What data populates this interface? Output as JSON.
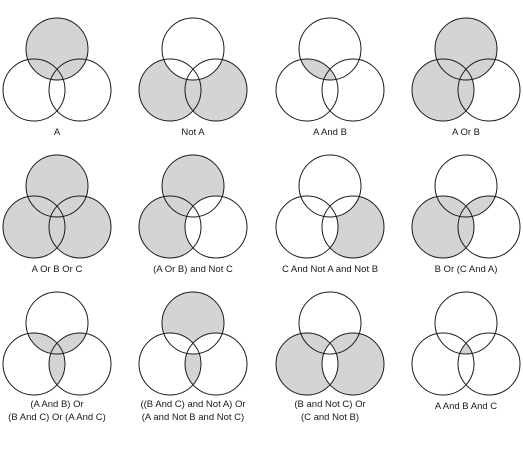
{
  "colors": {
    "fill": "#d4d4d4",
    "stroke": "#1a1a1a",
    "background": "#ffffff"
  },
  "diagrams": [
    {
      "label_lines": [
        "A"
      ],
      "regions": [
        "A",
        "AB",
        "AC",
        "ABC"
      ]
    },
    {
      "label_lines": [
        "Not A"
      ],
      "regions": [
        "B",
        "C",
        "BC"
      ]
    },
    {
      "label_lines": [
        "A And B"
      ],
      "regions": [
        "AB",
        "ABC"
      ]
    },
    {
      "label_lines": [
        "A Or B"
      ],
      "regions": [
        "A",
        "B",
        "AB",
        "AC",
        "BC",
        "ABC"
      ]
    },
    {
      "label_lines": [
        "A Or B Or C"
      ],
      "regions": [
        "A",
        "B",
        "C",
        "AB",
        "AC",
        "BC",
        "ABC"
      ]
    },
    {
      "label_lines": [
        "(A Or B) and Not C"
      ],
      "regions": [
        "A",
        "B",
        "AB"
      ]
    },
    {
      "label_lines": [
        "C And Not A and Not B"
      ],
      "regions": [
        "C"
      ]
    },
    {
      "label_lines": [
        "B Or (C And A)"
      ],
      "regions": [
        "B",
        "AB",
        "BC",
        "ABC",
        "AC"
      ]
    },
    {
      "label_lines": [
        "(A And B) Or",
        "(B And C) Or (A And C)"
      ],
      "regions": [
        "AB",
        "AC",
        "BC",
        "ABC"
      ]
    },
    {
      "label_lines": [
        "((B And C) and Not A) Or",
        "(A and Not B and Not C)"
      ],
      "regions": [
        "A",
        "BC"
      ]
    },
    {
      "label_lines": [
        "(B and Not C) Or",
        "(C and Not B)"
      ],
      "regions": [
        "B",
        "C",
        "AB",
        "AC"
      ]
    },
    {
      "label_lines": [
        "A And B And C"
      ],
      "regions": [
        "ABC"
      ]
    }
  ]
}
